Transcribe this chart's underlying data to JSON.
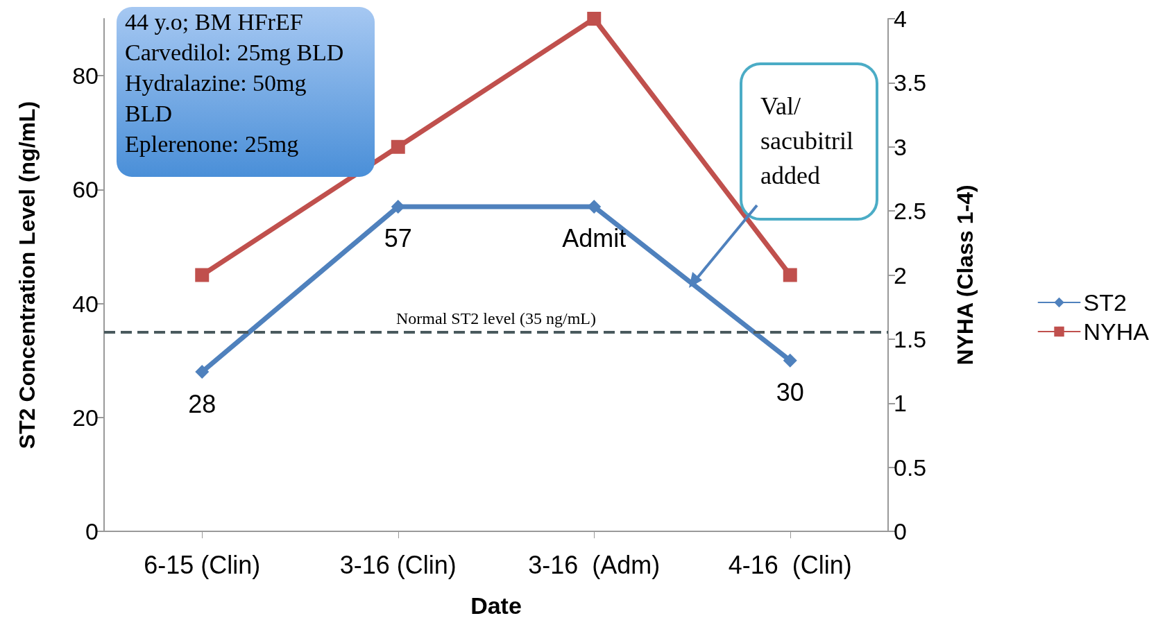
{
  "chart_data": {
    "type": "line",
    "xlabel": "Date",
    "ylabel": "ST2 Concentration Level (ng/mL)",
    "y2label": "NYHA (Class 1-4)",
    "categories": [
      "6-15 (Clin)",
      "3-16 (Clin)",
      "3-16  (Adm)",
      "4-16  (Clin)"
    ],
    "series": [
      {
        "name": "ST2",
        "color": "#4f81bd",
        "marker": "diamond",
        "values": [
          28,
          57,
          57,
          30
        ],
        "value_labels": [
          "28",
          "57",
          "Admit",
          "30"
        ]
      },
      {
        "name": "NYHA",
        "color": "#c0504d",
        "marker": "square",
        "axis": "y2",
        "values": [
          2,
          3,
          4,
          2
        ]
      }
    ],
    "ylim": [
      0,
      90
    ],
    "yticks": [
      0,
      20,
      40,
      60,
      80
    ],
    "y2lim": [
      0,
      4
    ],
    "y2ticks": [
      0,
      0.5,
      1,
      1.5,
      2,
      2.5,
      3,
      3.5,
      4
    ],
    "ref_lines": [
      {
        "axis": "y",
        "value": 35,
        "label": "Normal ST2 level (35 ng/mL)",
        "color": "#4a5a5e",
        "line_style": "dashed"
      }
    ],
    "annotations": [
      "44 y.o; BM HFrEF\nCarvedilol: 25mg BLD\nHydralazine: 50mg\nBLD\nEplerenone: 25mg",
      "Val/\nsacubitril\nadded"
    ],
    "legend": "right",
    "grid": false
  }
}
